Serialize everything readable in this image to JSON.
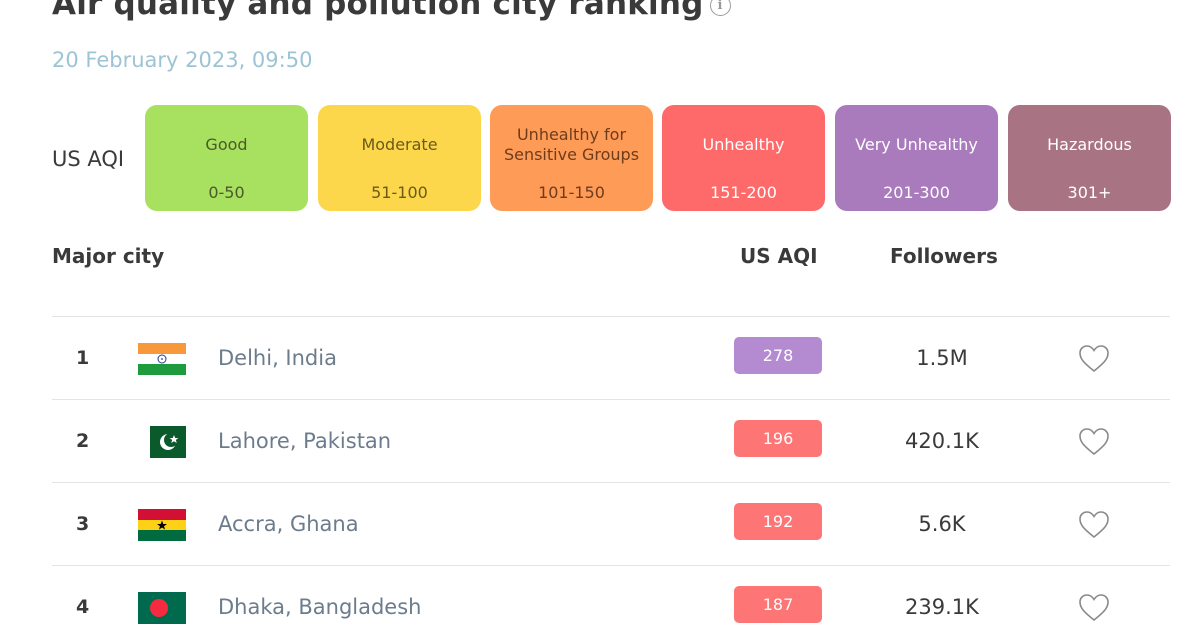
{
  "header": {
    "title": "Air quality and pollution city ranking",
    "info_icon": "info-icon",
    "timestamp": "20 February 2023, 09:50"
  },
  "legend": {
    "label": "US AQI",
    "items": [
      {
        "name": "Good",
        "range": "0-50",
        "color": "#a8e05f"
      },
      {
        "name": "Moderate",
        "range": "51-100",
        "color": "#fdd74b"
      },
      {
        "name": "Unhealthy for Sensitive Groups",
        "range": "101-150",
        "color": "#fe9b57"
      },
      {
        "name": "Unhealthy",
        "range": "151-200",
        "color": "#fe6a69"
      },
      {
        "name": "Very Unhealthy",
        "range": "201-300",
        "color": "#a97abc"
      },
      {
        "name": "Hazardous",
        "range": "301+",
        "color": "#a87383"
      }
    ]
  },
  "table": {
    "columns": {
      "city": "Major city",
      "aqi": "US AQI",
      "followers": "Followers"
    },
    "rows": [
      {
        "rank": "1",
        "city": "Delhi, India",
        "flag": "india-flag-icon",
        "aqi": "278",
        "aqi_color": "#b48ad0",
        "followers": "1.5M",
        "heart": "heart-icon"
      },
      {
        "rank": "2",
        "city": "Lahore, Pakistan",
        "flag": "pakistan-flag-icon",
        "aqi": "196",
        "aqi_color": "#fe7575",
        "followers": "420.1K",
        "heart": "heart-icon"
      },
      {
        "rank": "3",
        "city": "Accra, Ghana",
        "flag": "ghana-flag-icon",
        "aqi": "192",
        "aqi_color": "#fe7575",
        "followers": "5.6K",
        "heart": "heart-icon"
      },
      {
        "rank": "4",
        "city": "Dhaka, Bangladesh",
        "flag": "bangladesh-flag-icon",
        "aqi": "187",
        "aqi_color": "#fe7575",
        "followers": "239.1K",
        "heart": "heart-icon"
      }
    ]
  }
}
